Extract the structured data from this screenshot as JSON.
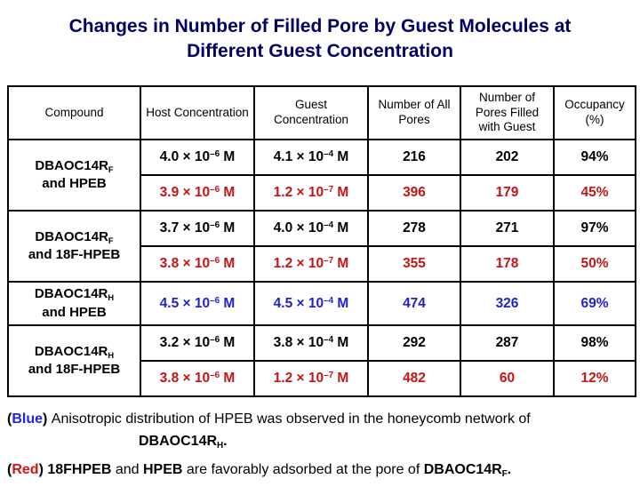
{
  "title": {
    "line1": "Changes in Number of Filled Pore by Guest Molecules at",
    "line2": "Different Guest Concentration"
  },
  "colors": {
    "navy": "#000066",
    "black": "#000000",
    "red": "#C41414",
    "blue": "#2222CC",
    "note_blue": "#2222EE",
    "note_red": "#D01414"
  },
  "table": {
    "headers": [
      "Compound",
      "Host Concentration",
      "Guest Concentration",
      "Number of All Pores",
      "Number of Pores Filled with Guest",
      "Occupancy (%)"
    ],
    "groups": [
      {
        "compound": {
          "base": "DBAOC14R",
          "sub": "F",
          "line2": "and HPEB"
        },
        "rows": [
          {
            "color": "black",
            "host": {
              "pre": "4.0 × 10",
              "exp": "–6",
              "post": " M"
            },
            "guest": {
              "pre": "4.1 × 10",
              "exp": "–4",
              "post": " M"
            },
            "all_pores": "216",
            "filled": "202",
            "occupancy": "94%"
          },
          {
            "color": "red",
            "host": {
              "pre": "3.9 × 10",
              "exp": "–6",
              "post": " M"
            },
            "guest": {
              "pre": "1.2 × 10",
              "exp": "–7",
              "post": " M"
            },
            "all_pores": "396",
            "filled": "179",
            "occupancy": "45%"
          }
        ]
      },
      {
        "compound": {
          "base": "DBAOC14R",
          "sub": "F",
          "line2": "and 18F-HPEB"
        },
        "rows": [
          {
            "color": "black",
            "host": {
              "pre": "3.7 × 10",
              "exp": "–6",
              "post": " M"
            },
            "guest": {
              "pre": "4.0 × 10",
              "exp": "–4",
              "post": " M"
            },
            "all_pores": "278",
            "filled": "271",
            "occupancy": "97%"
          },
          {
            "color": "red",
            "host": {
              "pre": "3.8 × 10",
              "exp": "–6",
              "post": " M"
            },
            "guest": {
              "pre": "1.2 × 10",
              "exp": "–7",
              "post": " M"
            },
            "all_pores": "355",
            "filled": "178",
            "occupancy": "50%"
          }
        ]
      },
      {
        "compound": {
          "base": "DBAOC14R",
          "sub": "H",
          "line2": "and HPEB"
        },
        "rows": [
          {
            "color": "blue",
            "host": {
              "pre": "4.5 × 10",
              "exp": "–6",
              "post": " M"
            },
            "guest": {
              "pre": "4.5 × 10",
              "exp": "–4",
              "post": " M"
            },
            "all_pores": "474",
            "filled": "326",
            "occupancy": "69%"
          }
        ]
      },
      {
        "compound": {
          "base": "DBAOC14R",
          "sub": "H",
          "line2": "and 18F-HPEB"
        },
        "rows": [
          {
            "color": "black",
            "host": {
              "pre": "3.2 × 10",
              "exp": "–6",
              "post": " M"
            },
            "guest": {
              "pre": "3.8 × 10",
              "exp": "–4",
              "post": " M"
            },
            "all_pores": "292",
            "filled": "287",
            "occupancy": "98%"
          },
          {
            "color": "red",
            "divider": true,
            "host": {
              "pre": "3.8 × 10",
              "exp": "–6",
              "post": " M"
            },
            "guest": {
              "pre": "1.2 × 10",
              "exp": "–7",
              "post": " M"
            },
            "all_pores": "482",
            "filled": "60",
            "occupancy": "12%"
          }
        ]
      }
    ]
  },
  "notes": [
    {
      "name": "note-blue",
      "lines": [
        {
          "indent": 0,
          "segments": [
            {
              "t": "(",
              "b": true
            },
            {
              "t": "Blue",
              "b": true,
              "c": "note_blue"
            },
            {
              "t": ") ",
              "b": true
            },
            {
              "t": "Anisotropic distribution of HPEB was observed in the honeycomb network of"
            }
          ]
        },
        {
          "indent": 148,
          "segments": [
            {
              "t": "DBAOC14R",
              "b": true
            },
            {
              "t": "H",
              "b": true,
              "sub": true
            },
            {
              "t": ".",
              "b": true
            }
          ]
        }
      ]
    },
    {
      "name": "note-red",
      "lines": [
        {
          "indent": 0,
          "segments": [
            {
              "t": "(",
              "b": true
            },
            {
              "t": "Red",
              "b": true,
              "c": "note_red"
            },
            {
              "t": ") ",
              "b": true
            },
            {
              "t": "18FHPEB",
              "b": true
            },
            {
              "t": " and "
            },
            {
              "t": "HPEB",
              "b": true
            },
            {
              "t": " are favorably adsorbed at the pore of "
            },
            {
              "t": "DBAOC14R",
              "b": true
            },
            {
              "t": "F",
              "b": true,
              "sub": true
            },
            {
              "t": ".",
              "b": true
            }
          ]
        }
      ]
    }
  ]
}
